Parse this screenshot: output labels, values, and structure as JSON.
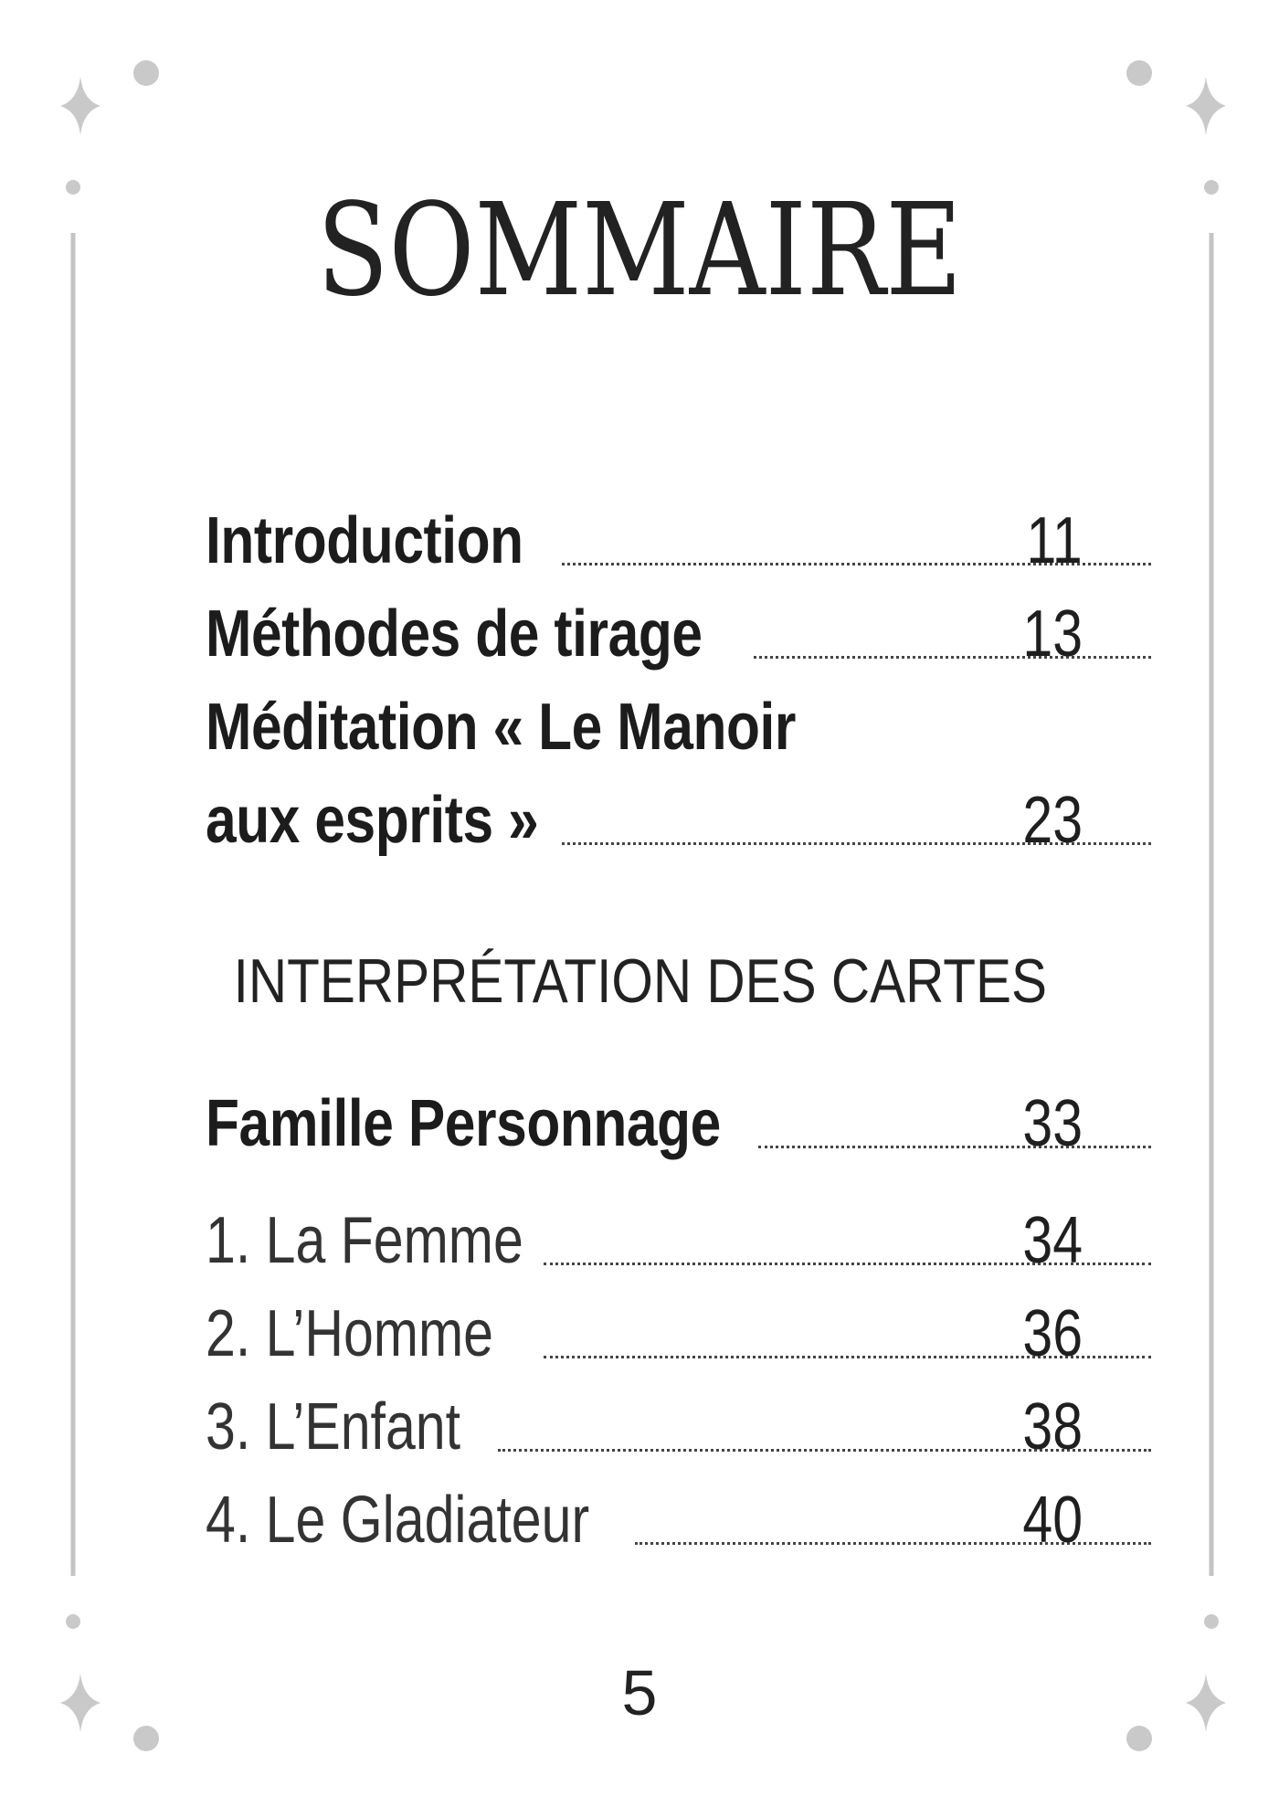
{
  "title": "SOMMAIRE",
  "entries_top": [
    {
      "label": "Introduction",
      "page": "11"
    },
    {
      "label": "Méthodes de tirage",
      "page": "13"
    },
    {
      "label": "Méditation « Le Manoir",
      "page": ""
    },
    {
      "label": "aux esprits »",
      "page": "23"
    }
  ],
  "section_heading": "INTERPRÉTATION DES CARTES",
  "family_entry": {
    "label": "Famille Personnage",
    "page": "33"
  },
  "card_entries": [
    {
      "label": "1. La Femme",
      "page": "34"
    },
    {
      "label": "2. L’Homme",
      "page": "36"
    },
    {
      "label": "3. L’Enfant",
      "page": "38"
    },
    {
      "label": "4. Le Gladiateur",
      "page": "40"
    }
  ],
  "page_number": "5",
  "colors": {
    "text": "#222222",
    "ornament": "#bfbfbf",
    "background": "#ffffff"
  },
  "ornaments": [
    "sparkle-icon",
    "dot-icon",
    "vertical-rule"
  ]
}
